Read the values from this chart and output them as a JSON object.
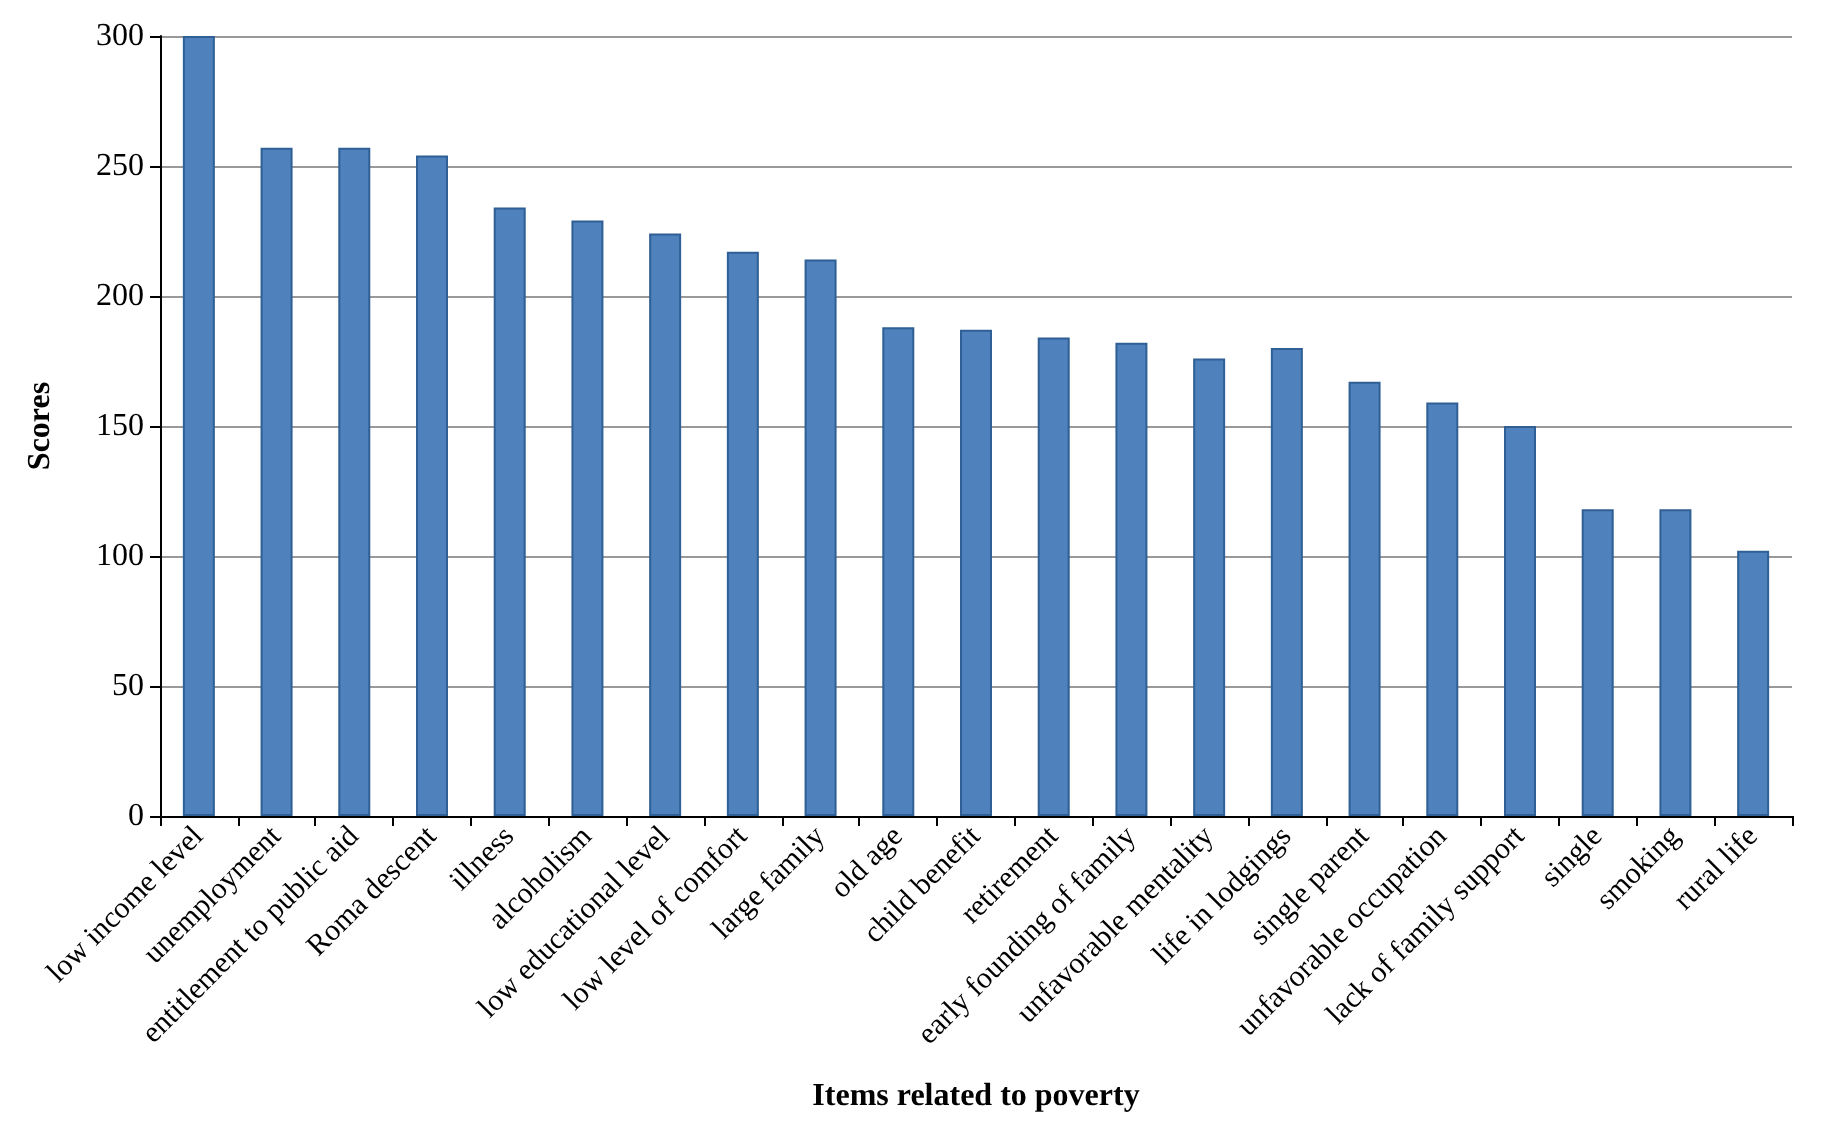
{
  "chart_data": {
    "type": "bar",
    "xlabel": "Items related to poverty",
    "ylabel": "Scores",
    "categories": [
      "low income level",
      "unemployment",
      "entitlement to public aid",
      "Roma descent",
      "illness",
      "alcoholism",
      "low educational level",
      "low level of comfort",
      "large family",
      "old age",
      "child benefit",
      "retirement",
      "early founding of family",
      "unfavorable mentality",
      "life in lodgings",
      "single parent",
      "unfavorable occupation",
      "lack of family support",
      "single",
      "smoking",
      "rural life"
    ],
    "values": [
      300,
      257,
      257,
      254,
      234,
      229,
      224,
      217,
      214,
      188,
      187,
      184,
      182,
      176,
      180,
      167,
      159,
      150,
      118,
      118,
      102
    ],
    "color": "#4f81bd",
    "ylim": [
      0,
      300
    ],
    "yticks": [
      0,
      50,
      100,
      150,
      200,
      250,
      300
    ],
    "grid": "y"
  }
}
